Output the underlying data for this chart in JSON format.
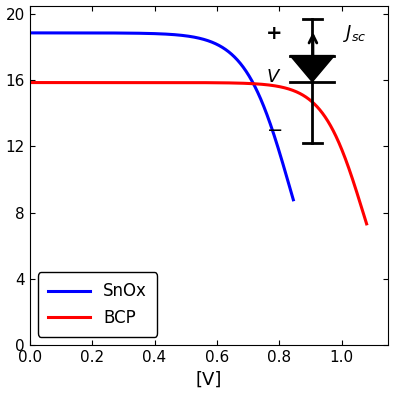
{
  "title": "",
  "xlabel": "[V]",
  "ylabel": "",
  "xlim": [
    0,
    1.15
  ],
  "ylim": [
    0,
    20.5
  ],
  "yticks": [
    0,
    4,
    8,
    12,
    16,
    20
  ],
  "xticks": [
    0,
    0.2,
    0.4,
    0.6,
    0.8,
    1.0
  ],
  "blue_label": "SnOx",
  "red_label": "BCP",
  "blue_color": "#0000FF",
  "red_color": "#FF0000",
  "blue_Jsc": 18.85,
  "blue_n": 0.072,
  "blue_Voc": 0.835,
  "red_Jsc": 15.85,
  "red_n": 0.065,
  "red_Voc": 1.07,
  "line_width": 2.2,
  "legend_fontsize": 12,
  "tick_fontsize": 11,
  "label_fontsize": 13
}
